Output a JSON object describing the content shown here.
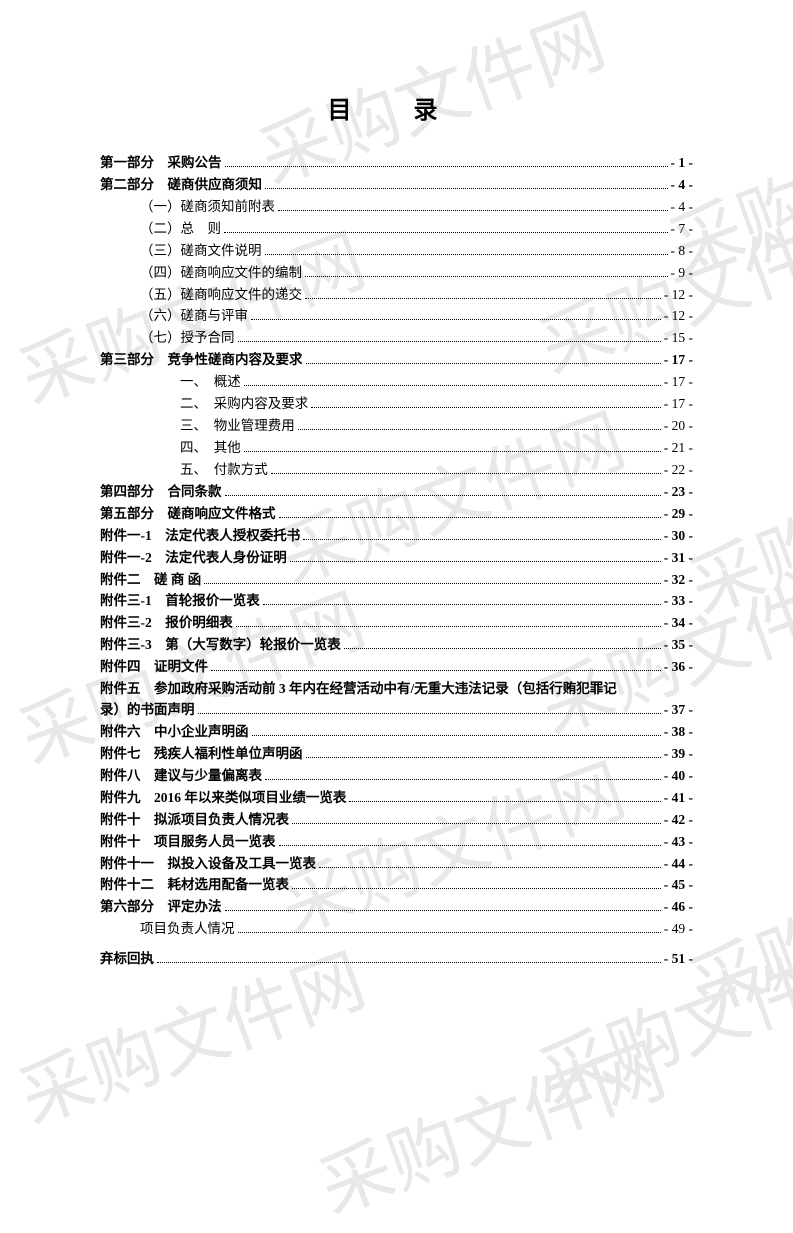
{
  "title": "目  录",
  "watermark_text": "采购文件网",
  "entries": [
    {
      "label": "第一部分　采购公告",
      "page": "- 1 -",
      "bold": true,
      "indent": 0
    },
    {
      "label": "第二部分　磋商供应商须知",
      "page": "- 4 -",
      "bold": true,
      "indent": 0
    },
    {
      "label": "（一）磋商须知前附表",
      "page": "- 4 -",
      "bold": false,
      "indent": 1
    },
    {
      "label": "（二）总　则",
      "page": "- 7 -",
      "bold": false,
      "indent": 1
    },
    {
      "label": "（三）磋商文件说明",
      "page": "- 8 -",
      "bold": false,
      "indent": 1
    },
    {
      "label": "（四）磋商响应文件的编制",
      "page": "- 9 -",
      "bold": false,
      "indent": 1
    },
    {
      "label": "（五）磋商响应文件的递交",
      "page": "- 12 -",
      "bold": false,
      "indent": 1
    },
    {
      "label": "（六）磋商与评审",
      "page": "- 12 -",
      "bold": false,
      "indent": 1
    },
    {
      "label": "（七）授予合同",
      "page": "- 15 -",
      "bold": false,
      "indent": 1
    },
    {
      "label": "第三部分　竞争性磋商内容及要求",
      "page": "- 17 -",
      "bold": true,
      "indent": 0
    },
    {
      "label": "一、　概述",
      "page": "- 17 -",
      "bold": false,
      "indent": 2
    },
    {
      "label": "二、　采购内容及要求",
      "page": "- 17 -",
      "bold": false,
      "indent": 2
    },
    {
      "label": "三、　物业管理费用",
      "page": "- 20 -",
      "bold": false,
      "indent": 2
    },
    {
      "label": "四、　其他",
      "page": "- 21 -",
      "bold": false,
      "indent": 2
    },
    {
      "label": "五、　付款方式",
      "page": "- 22 -",
      "bold": false,
      "indent": 2
    },
    {
      "label": "第四部分　合同条款",
      "page": "- 23 -",
      "bold": true,
      "indent": 0
    },
    {
      "label": "第五部分　磋商响应文件格式",
      "page": "- 29 -",
      "bold": true,
      "indent": 0
    },
    {
      "label": "附件一-1　法定代表人授权委托书",
      "page": "- 30 -",
      "bold": true,
      "indent": 0
    },
    {
      "label": "附件一-2　法定代表人身份证明",
      "page": "- 31 -",
      "bold": true,
      "indent": 0
    },
    {
      "label": "附件二　磋 商 函",
      "page": "- 32 -",
      "bold": true,
      "indent": 0
    },
    {
      "label": "附件三-1　首轮报价一览表",
      "page": "- 33 -",
      "bold": true,
      "indent": 0
    },
    {
      "label": "附件三-2　报价明细表",
      "page": "- 34 -",
      "bold": true,
      "indent": 0
    },
    {
      "label": "附件三-3　第（大写数字）轮报价一览表",
      "page": "- 35 -",
      "bold": true,
      "indent": 0
    },
    {
      "label": "附件四　证明文件",
      "page": "- 36 -",
      "bold": true,
      "indent": 0
    },
    {
      "type": "wrap",
      "line1": "附件五　参加政府采购活动前 3 年内在经营活动中有/无重大违法记录（包括行贿犯罪记",
      "line2": "录）的书面声明",
      "page": "- 37 -",
      "bold": true
    },
    {
      "label": "附件六　中小企业声明函",
      "page": "- 38 -",
      "bold": true,
      "indent": 0
    },
    {
      "label": "附件七　残疾人福利性单位声明函",
      "page": "- 39 -",
      "bold": true,
      "indent": 0
    },
    {
      "label": "附件八　建议与少量偏离表",
      "page": "- 40 -",
      "bold": true,
      "indent": 0
    },
    {
      "label": "附件九　2016 年以来类似项目业绩一览表",
      "page": "- 41 -",
      "bold": true,
      "indent": 0
    },
    {
      "label": "附件十　拟派项目负责人情况表",
      "page": "- 42 -",
      "bold": true,
      "indent": 0
    },
    {
      "label": "附件十　项目服务人员一览表",
      "page": "- 43 -",
      "bold": true,
      "indent": 0
    },
    {
      "label": "附件十一　拟投入设备及工具一览表",
      "page": "- 44 -",
      "bold": true,
      "indent": 0
    },
    {
      "label": "附件十二　耗材选用配备一览表",
      "page": "- 45 -",
      "bold": true,
      "indent": 0
    },
    {
      "label": "第六部分　评定办法",
      "page": "- 46 -",
      "bold": true,
      "indent": 0
    },
    {
      "label": "项目负责人情况",
      "page": "- 49 -",
      "bold": false,
      "indent": 1
    },
    {
      "type": "gap"
    },
    {
      "label": "弃标回执",
      "page": "- 51 -",
      "bold": true,
      "indent": 0
    }
  ]
}
